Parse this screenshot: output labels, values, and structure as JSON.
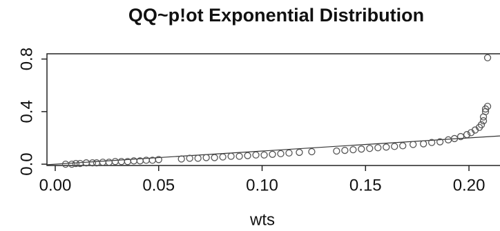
{
  "chart_data": {
    "type": "scatter",
    "title": "QQ~p!ot Exponential Distribution",
    "xlabel": "wts",
    "x": [
      0.005,
      0.008,
      0.01,
      0.012,
      0.015,
      0.018,
      0.02,
      0.023,
      0.026,
      0.029,
      0.032,
      0.035,
      0.038,
      0.041,
      0.044,
      0.047,
      0.05,
      0.061,
      0.065,
      0.069,
      0.073,
      0.077,
      0.081,
      0.085,
      0.089,
      0.093,
      0.097,
      0.101,
      0.105,
      0.109,
      0.113,
      0.118,
      0.124,
      0.136,
      0.14,
      0.144,
      0.148,
      0.152,
      0.156,
      0.16,
      0.164,
      0.168,
      0.173,
      0.178,
      0.182,
      0.186,
      0.19,
      0.193,
      0.196,
      0.199,
      0.201,
      0.203,
      0.205,
      0.206,
      0.207,
      0.207,
      0.208,
      0.208,
      0.209,
      0.209
    ],
    "values": [
      0.0,
      0.0,
      0.005,
      0.005,
      0.01,
      0.01,
      0.01,
      0.015,
      0.015,
      0.02,
      0.02,
      0.02,
      0.025,
      0.025,
      0.03,
      0.03,
      0.035,
      0.04,
      0.045,
      0.045,
      0.05,
      0.05,
      0.055,
      0.06,
      0.06,
      0.065,
      0.07,
      0.07,
      0.075,
      0.08,
      0.085,
      0.09,
      0.095,
      0.1,
      0.105,
      0.11,
      0.115,
      0.12,
      0.125,
      0.13,
      0.135,
      0.14,
      0.15,
      0.155,
      0.165,
      0.17,
      0.185,
      0.195,
      0.21,
      0.225,
      0.24,
      0.26,
      0.28,
      0.3,
      0.33,
      0.36,
      0.4,
      0.42,
      0.44,
      0.81
    ],
    "color": "#555555",
    "reference_line": {
      "slope": 1,
      "intercept": 0
    },
    "xlim": [
      -0.004,
      0.215
    ],
    "ylim": [
      -0.01,
      0.84
    ],
    "xticks": [
      {
        "value": 0,
        "label": "0.00"
      },
      0.05,
      {
        "value": 0.1,
        "label": "0.10"
      },
      0.15,
      {
        "value": 0.2,
        "label": "0.20"
      }
    ],
    "yticks": [
      {
        "value": 0,
        "label": "0.0"
      },
      0.4,
      0.8
    ]
  }
}
